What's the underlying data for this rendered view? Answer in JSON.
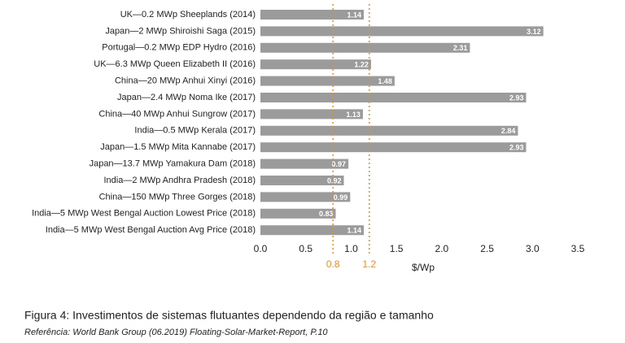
{
  "chart_data": {
    "type": "bar",
    "orientation": "horizontal",
    "categories": [
      "UK—0.2 MWp Sheeplands (2014)",
      "Japan—2 MWp Shiroishi Saga (2015)",
      "Portugal—0.2 MWp EDP Hydro (2016)",
      "UK—6.3 MWp Queen Elizabeth II (2016)",
      "China—20 MWp Anhui Xinyi (2016)",
      "Japan—2.4 MWp Noma Ike (2017)",
      "China—40 MWp Anhui Sungrow (2017)",
      "India—0.5 MWp Kerala (2017)",
      "Japan—1.5 MWp Mita Kannabe (2017)",
      "Japan—13.7 MWp Yamakura Dam (2018)",
      "India—2 MWp Andhra Pradesh (2018)",
      "China—150 MWp Three Gorges (2018)",
      "India—5 MWp West Bengal Auction Lowest Price (2018)",
      "India—5 MWp West Bengal Auction Avg Price (2018)"
    ],
    "values": [
      1.14,
      3.12,
      2.31,
      1.22,
      1.48,
      2.93,
      1.13,
      2.84,
      2.93,
      0.97,
      0.92,
      0.99,
      0.83,
      1.14
    ],
    "color": "#9b9b9b",
    "xlim": [
      0,
      3.5
    ],
    "xticks": [
      {
        "value": 0,
        "label": "0.0"
      },
      0.5,
      {
        "value": 1,
        "label": "1.0"
      },
      1.5,
      {
        "value": 2,
        "label": "2.0"
      },
      2.5,
      {
        "value": 3,
        "label": "3.0"
      },
      3.5
    ],
    "x_label": "$/Wp",
    "reference_lines": [
      0.8,
      1.2
    ],
    "reference_color": "#f08a24",
    "caption": "Figura 4: Investimentos de sistemas flutuantes dependendo da região e tamanho",
    "source": "Referência: World Bank Group (06.2019) Floating-Solar-Market-Report, P.10"
  }
}
